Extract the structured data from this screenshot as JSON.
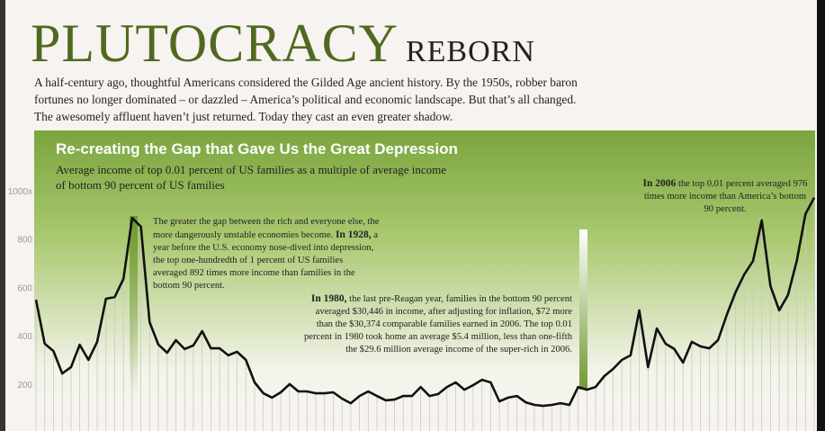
{
  "header": {
    "title": "PLUTOCRACY",
    "title_suffix": "REBORN",
    "intro": [
      "A half-century ago, thoughtful Americans considered the Gilded Age ancient history. By the 1950s, robber baron",
      "fortunes no longer dominated – or dazzled – America’s political and economic landscape. But that’s all changed.",
      "The awesomely affluent haven’t just returned. Today they cast an even greater shadow."
    ]
  },
  "chart_data": {
    "type": "line",
    "title": "Re-creating the Gap that Gave Us the Great Depression",
    "subtitle": [
      "Average income of top 0.01 percent of US families as a multiple of average income",
      "of bottom 90 percent of US families"
    ],
    "ylim": [
      0,
      1000
    ],
    "yticks": [
      200,
      400,
      600,
      800,
      {
        "value": 1000,
        "label": "1000x"
      }
    ],
    "series": [
      {
        "name": "Top 0.01 percent income multiple",
        "color": "#111111",
        "values": [
          554,
          372,
          342,
          249,
          275,
          368,
          305,
          380,
          558,
          565,
          640,
          892,
          856,
          461,
          368,
          335,
          387,
          350,
          365,
          424,
          353,
          353,
          324,
          339,
          305,
          212,
          167,
          149,
          171,
          205,
          175,
          175,
          167,
          167,
          171,
          145,
          126,
          156,
          175,
          156,
          138,
          141,
          156,
          156,
          193,
          156,
          164,
          193,
          212,
          182,
          201,
          223,
          212,
          134,
          149,
          156,
          130,
          119,
          115,
          119,
          126,
          119,
          193,
          182,
          193,
          238,
          268,
          305,
          324,
          510,
          275,
          435,
          372,
          350,
          294,
          380,
          361,
          353,
          387,
          491,
          584,
          658,
          714,
          882,
          610,
          510,
          573,
          714,
          908,
          976
        ]
      }
    ],
    "annotations": [
      {
        "text": [
          "The greater the gap between the rich and everyone else, the more dangerously unstable economies become. ",
          "In 1928,",
          " a year before the U.S. economy nose-dived into depression, the top one-hundredth of 1 percent of US families averaged 892 times more income than families in the bottom 90 percent."
        ],
        "bold": [
          false,
          true,
          false
        ]
      },
      {
        "text": [
          "In 1980,",
          " the last pre-Reagan year, families in the bottom 90 percent averaged $30,446 in income, after adjusting for inflation, $72 more than the $30,374 comparable families earned in 2006. The top 0.01 percent in 1980 took home an average $5.4 million, less than one-fifth the $29.6 million average income of the super-rich in 2006."
        ],
        "bold": [
          true,
          false
        ]
      },
      {
        "text": [
          "In 2006",
          " the top 0.01 percent averaged 976 times more income than America’s bottom 90 percent."
        ],
        "bold": [
          true,
          false
        ]
      }
    ]
  }
}
